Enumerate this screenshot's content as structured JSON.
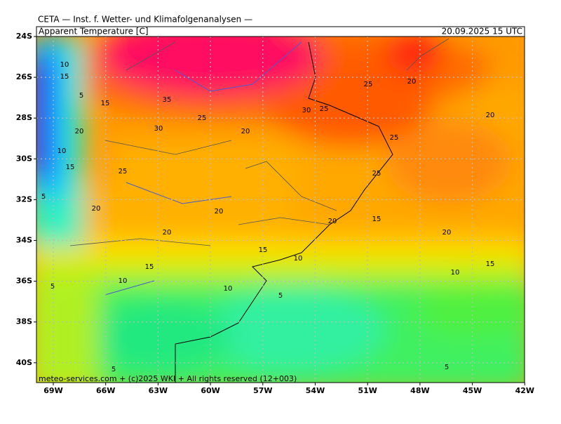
{
  "header": {
    "title": "CETA — Inst. f. Wetter- und Klimafolgenanalysen —",
    "variable": "Apparent Temperature [C]",
    "valid_time": "20.09.2025 15 UTC"
  },
  "map": {
    "lat_labels": [
      "24S",
      "26S",
      "28S",
      "30S",
      "32S",
      "34S",
      "36S",
      "38S",
      "40S"
    ],
    "lon_labels": [
      "69W",
      "66W",
      "63W",
      "60W",
      "57W",
      "54W",
      "51W",
      "48W",
      "45W",
      "42W"
    ],
    "contour_labels": [
      10,
      15,
      5,
      15,
      35,
      25,
      30,
      20,
      20,
      30,
      25,
      25,
      20,
      20,
      25,
      25,
      10,
      15,
      25,
      5,
      20,
      20,
      20,
      15,
      20,
      20,
      15,
      10,
      15,
      10,
      15,
      10,
      10,
      5,
      5,
      5,
      5
    ]
  },
  "footer": "meteo-services.com + (c)2025 WKI + All rights reserved (12+003)"
}
